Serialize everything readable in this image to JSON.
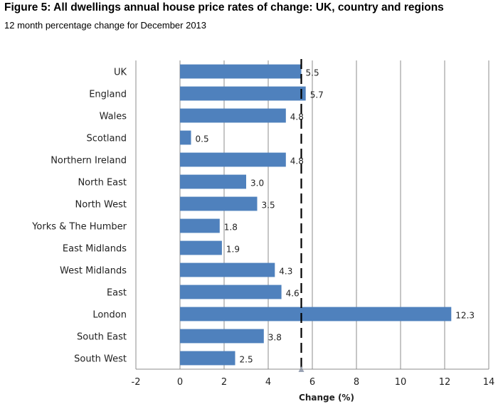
{
  "chart_data": {
    "type": "bar",
    "orientation": "horizontal",
    "title": "Figure 5: All dwellings annual house price rates of change: UK, country and regions",
    "subtitle": "12 month percentage change for December 2013",
    "xlabel": "Change (%)",
    "ylabel": "",
    "xlim": [
      -2,
      14
    ],
    "x_ticks": [
      -2,
      0,
      2,
      4,
      6,
      8,
      10,
      12,
      14
    ],
    "x_tick_labels": [
      "-2",
      "0",
      "2",
      "4",
      "6",
      "8",
      "10",
      "12",
      "14"
    ],
    "grid": "vertical",
    "legend": "none",
    "reference_line": {
      "value": 5.5,
      "style": "dashed"
    },
    "bar_color": "#4f81bd",
    "categories": [
      "UK",
      "England",
      "Wales",
      "Scotland",
      "Northern Ireland",
      "North East",
      "North West",
      "Yorks & The Humber",
      "East Midlands",
      "West Midlands",
      "East",
      "London",
      "South East",
      "South West"
    ],
    "values": [
      5.5,
      5.7,
      4.8,
      0.5,
      4.8,
      3.0,
      3.5,
      1.8,
      1.9,
      4.3,
      4.6,
      12.3,
      3.8,
      2.5
    ],
    "value_labels": [
      "5.5",
      "5.7",
      "4.8",
      "0.5",
      "4.8",
      "3.0",
      "3.5",
      "1.8",
      "1.9",
      "4.3",
      "4.6",
      "12.3",
      "3.8",
      "2.5"
    ]
  }
}
